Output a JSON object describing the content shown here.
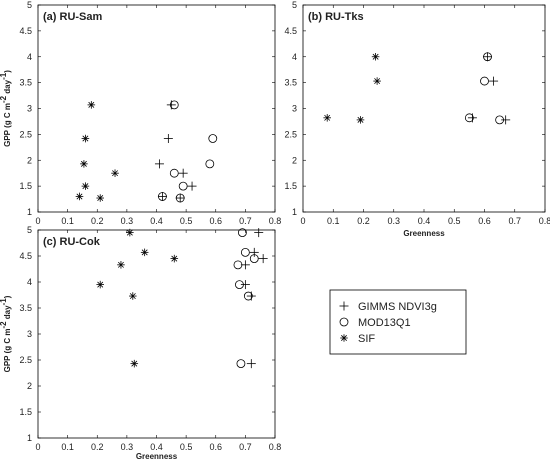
{
  "chart_data": [
    {
      "type": "scatter",
      "panel_label": "(a) RU-Sam",
      "xlabel": "",
      "ylabel": "GPP (g C m",
      "ylabel_sup1": "-2",
      "ylabel_mid": " day",
      "ylabel_sup2": "-1",
      "ylabel_end": ")",
      "xlim": [
        0,
        0.8
      ],
      "ylim": [
        1,
        5
      ],
      "xticks": [
        "0",
        "0.1",
        "0.2",
        "0.3",
        "0.4",
        "0.5",
        "0.6",
        "0.7",
        "0.8"
      ],
      "yticks": [
        "1",
        "1.5",
        "2",
        "2.5",
        "3",
        "3.5",
        "4",
        "4.5",
        "5"
      ],
      "series": [
        {
          "name": "GIMMS NDVI3g",
          "marker": "plus",
          "points": [
            [
              0.45,
              3.07
            ],
            [
              0.44,
              2.42
            ],
            [
              0.41,
              1.93
            ],
            [
              0.49,
              1.75
            ],
            [
              0.42,
              1.3
            ],
            [
              0.52,
              1.5
            ],
            [
              0.48,
              1.27
            ]
          ]
        },
        {
          "name": "MOD13Q1",
          "marker": "circle",
          "points": [
            [
              0.46,
              3.07
            ],
            [
              0.59,
              2.42
            ],
            [
              0.58,
              1.93
            ],
            [
              0.46,
              1.75
            ],
            [
              0.42,
              1.3
            ],
            [
              0.49,
              1.5
            ],
            [
              0.48,
              1.27
            ]
          ]
        },
        {
          "name": "SIF",
          "marker": "star",
          "points": [
            [
              0.18,
              3.07
            ],
            [
              0.16,
              2.42
            ],
            [
              0.155,
              1.93
            ],
            [
              0.26,
              1.75
            ],
            [
              0.14,
              1.3
            ],
            [
              0.16,
              1.5
            ],
            [
              0.21,
              1.27
            ]
          ]
        }
      ]
    },
    {
      "type": "scatter",
      "panel_label": "(b) RU-Tks",
      "xlabel": "Greenness",
      "ylabel": "",
      "xlim": [
        0,
        0.8
      ],
      "ylim": [
        1,
        5
      ],
      "xticks": [
        "0",
        "0.1",
        "0.2",
        "0.3",
        "0.4",
        "0.5",
        "0.6",
        "0.7",
        "0.8"
      ],
      "yticks": [
        "1",
        "1.5",
        "2",
        "2.5",
        "3",
        "3.5",
        "4",
        "4.5",
        "5"
      ],
      "series": [
        {
          "name": "GIMMS NDVI3g",
          "marker": "plus",
          "points": [
            [
              0.61,
              4.0
            ],
            [
              0.63,
              3.53
            ],
            [
              0.56,
              2.82
            ],
            [
              0.67,
              2.78
            ]
          ]
        },
        {
          "name": "MOD13Q1",
          "marker": "circle",
          "points": [
            [
              0.61,
              4.0
            ],
            [
              0.6,
              3.53
            ],
            [
              0.55,
              2.82
            ],
            [
              0.65,
              2.78
            ]
          ]
        },
        {
          "name": "SIF",
          "marker": "star",
          "points": [
            [
              0.24,
              4.0
            ],
            [
              0.245,
              3.53
            ],
            [
              0.08,
              2.82
            ],
            [
              0.19,
              2.78
            ]
          ]
        }
      ]
    },
    {
      "type": "scatter",
      "panel_label": "(c) RU-Cok",
      "xlabel": "Greenness",
      "ylabel": "GPP (g C m",
      "ylabel_sup1": "-2",
      "ylabel_mid": " day",
      "ylabel_sup2": "-1",
      "ylabel_end": ")",
      "xlim": [
        0,
        0.8
      ],
      "ylim": [
        1,
        5
      ],
      "xticks": [
        "0",
        "0.1",
        "0.2",
        "0.3",
        "0.4",
        "0.5",
        "0.6",
        "0.7",
        "0.8"
      ],
      "yticks": [
        "1",
        "1.5",
        "2",
        "2.5",
        "3",
        "3.5",
        "4",
        "4.5",
        "5"
      ],
      "series": [
        {
          "name": "GIMMS NDVI3g",
          "marker": "plus",
          "points": [
            [
              0.745,
              4.95
            ],
            [
              0.73,
              4.57
            ],
            [
              0.76,
              4.45
            ],
            [
              0.7,
              4.33
            ],
            [
              0.7,
              3.95
            ],
            [
              0.72,
              3.73
            ],
            [
              0.72,
              2.43
            ]
          ]
        },
        {
          "name": "MOD13Q1",
          "marker": "circle",
          "points": [
            [
              0.69,
              4.95
            ],
            [
              0.7,
              4.57
            ],
            [
              0.73,
              4.45
            ],
            [
              0.675,
              4.33
            ],
            [
              0.68,
              3.95
            ],
            [
              0.71,
              3.73
            ],
            [
              0.685,
              2.43
            ]
          ]
        },
        {
          "name": "SIF",
          "marker": "star",
          "points": [
            [
              0.31,
              4.95
            ],
            [
              0.36,
              4.57
            ],
            [
              0.46,
              4.45
            ],
            [
              0.28,
              4.33
            ],
            [
              0.21,
              3.95
            ],
            [
              0.32,
              3.73
            ],
            [
              0.325,
              2.43
            ]
          ]
        }
      ]
    }
  ],
  "legend": {
    "items": [
      {
        "label": "GIMMS NDVI3g",
        "marker": "plus"
      },
      {
        "label": "MOD13Q1",
        "marker": "circle"
      },
      {
        "label": "SIF",
        "marker": "star"
      }
    ]
  }
}
